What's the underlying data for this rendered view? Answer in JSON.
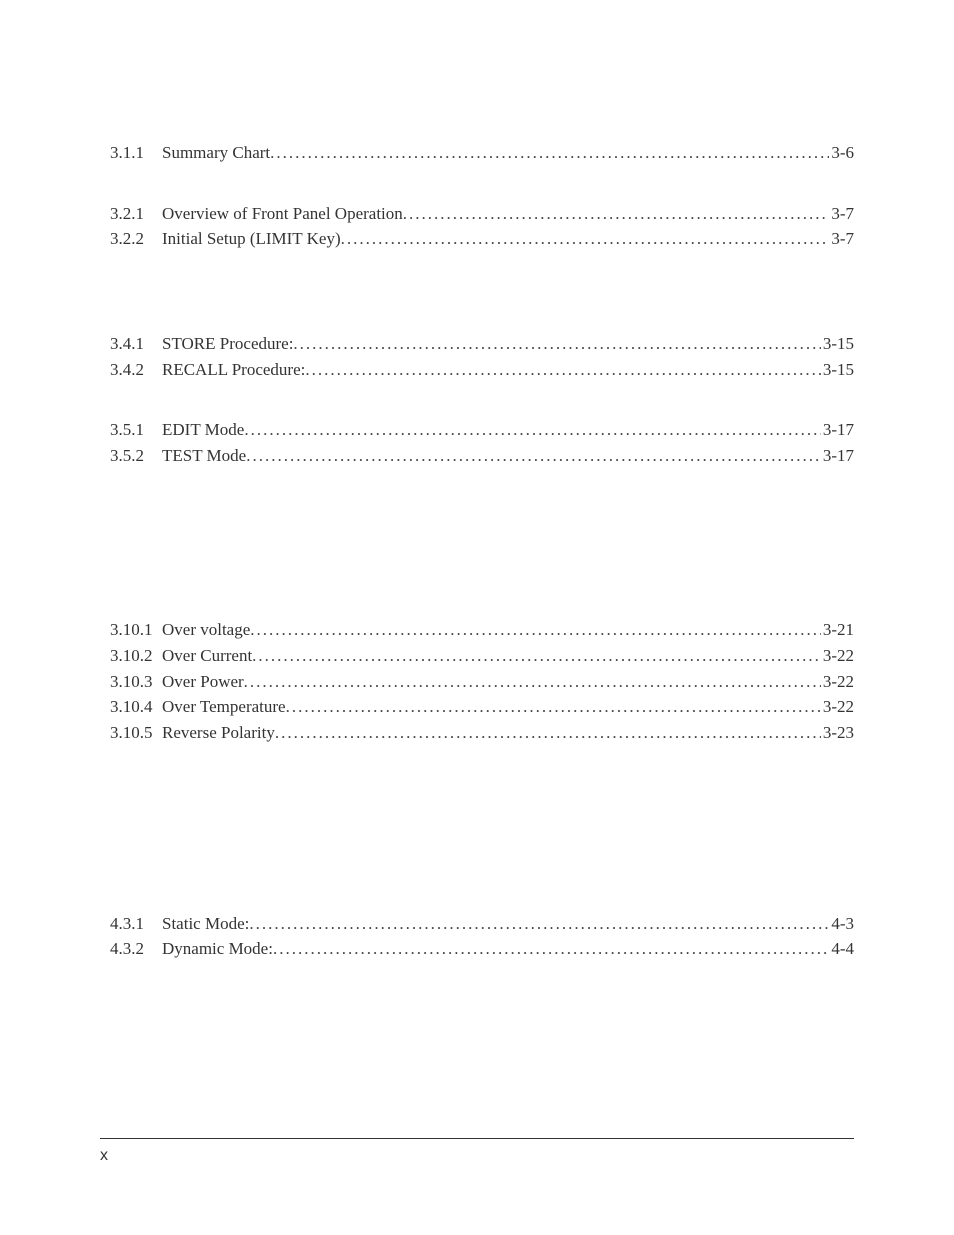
{
  "colors": {
    "text": "#333333",
    "background": "#ffffff",
    "rule": "#333333"
  },
  "typography": {
    "body_font": "Times New Roman",
    "body_size_pt": 12,
    "footer_font": "Arial",
    "footer_size_pt": 11
  },
  "toc": [
    {
      "indent": 1,
      "num": "3.1.1",
      "title": "Summary Chart",
      "page": "3-6"
    },
    {
      "spacer": "med"
    },
    {
      "indent": 1,
      "num": "3.2.1",
      "title": "Overview of Front Panel Operation",
      "page": "3-7"
    },
    {
      "indent": 1,
      "num": "3.2.2",
      "title": "Initial Setup (LIMIT Key)",
      "page": "3-7"
    },
    {
      "spacer": "big"
    },
    {
      "spacer": "small"
    },
    {
      "indent": 1,
      "num": "3.4.1",
      "title": "STORE Procedure:",
      "page": "3-15"
    },
    {
      "indent": 1,
      "num": "3.4.2",
      "title": "RECALL Procedure:",
      "page": "3-15"
    },
    {
      "spacer": "med"
    },
    {
      "indent": 1,
      "num": "3.5.1",
      "title": "EDIT Mode",
      "page": "3-17"
    },
    {
      "indent": 1,
      "num": "3.5.2",
      "title": "TEST Mode",
      "page": "3-17"
    },
    {
      "spacer": "huge"
    },
    {
      "spacer": "small"
    },
    {
      "indent": 1,
      "num": "3.10.1",
      "title": "Over voltage",
      "page": "3-21"
    },
    {
      "indent": 1,
      "num": "3.10.2",
      "title": "Over Current",
      "page": "3-22"
    },
    {
      "indent": 1,
      "num": "3.10.3",
      "title": "Over Power",
      "page": "3-22"
    },
    {
      "indent": 1,
      "num": "3.10.4",
      "title": "Over Temperature",
      "page": "3-22"
    },
    {
      "indent": 1,
      "num": "3.10.5",
      "title": "Reverse Polarity",
      "page": "3-23"
    },
    {
      "spacer": "huge"
    },
    {
      "spacer": "med"
    },
    {
      "indent": 1,
      "num": "4.3.1",
      "title": "Static Mode:",
      "page": "4-3"
    },
    {
      "indent": 1,
      "num": "4.3.2",
      "title": "Dynamic Mode:",
      "page": "4-4"
    }
  ],
  "footer": {
    "page_number": "x"
  }
}
